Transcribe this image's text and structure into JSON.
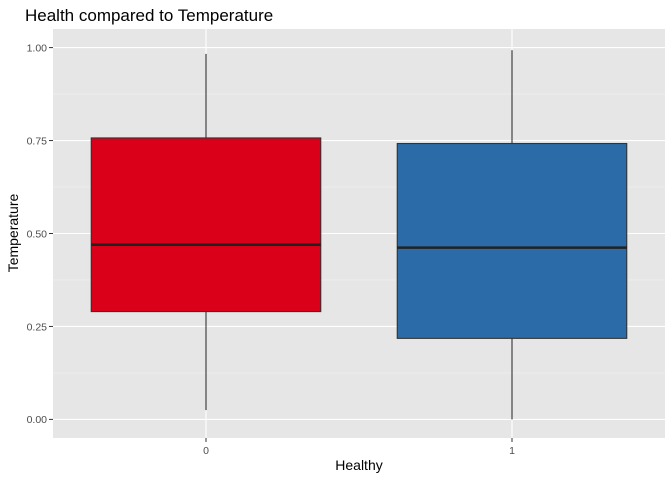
{
  "chart_data": {
    "type": "boxplot",
    "title": "Health compared to Temperature",
    "xlabel": "Healthy",
    "ylabel": "Temperature",
    "ylim": [
      -0.05,
      1.05
    ],
    "y_ticks": [
      "0.00",
      "0.25",
      "0.50",
      "0.75",
      "1.00"
    ],
    "y_tick_values": [
      0,
      0.25,
      0.5,
      0.75,
      1.0
    ],
    "categories": [
      "0",
      "1"
    ],
    "boxes": [
      {
        "category": "0",
        "whisker_low": 0.025,
        "q1": 0.29,
        "median": 0.47,
        "q3": 0.757,
        "whisker_high": 0.983,
        "fill": "#DB0019"
      },
      {
        "category": "1",
        "whisker_low": 0.0,
        "q1": 0.218,
        "median": 0.462,
        "q3": 0.742,
        "whisker_high": 0.993,
        "fill": "#2B6CA8"
      }
    ],
    "panel_background": "#E6E6E6",
    "grid": true,
    "legend": "none"
  }
}
